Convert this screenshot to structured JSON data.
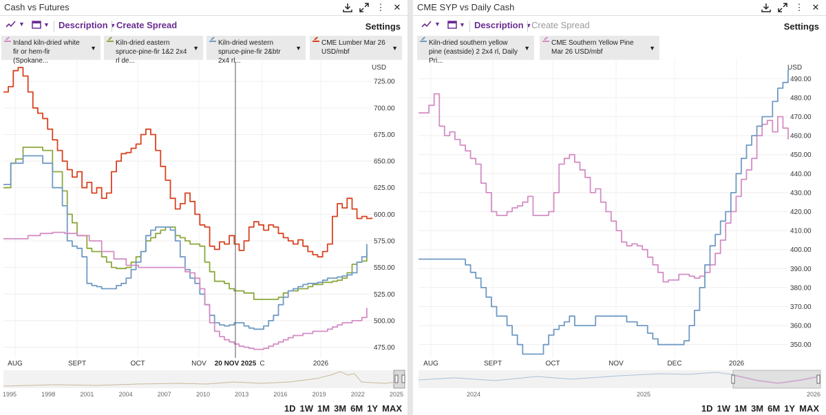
{
  "left": {
    "title": "Cash vs Futures",
    "toolbar": {
      "description": "Description",
      "create_spread": "Create Spread",
      "settings": "Settings"
    },
    "legend": [
      {
        "label": "Inland kiln-dried white fir or hem-fir (Spokane...",
        "color": "#d48cc4"
      },
      {
        "label": "Kiln-dried eastern spruce-pine-fir 1&2 2x4 rl de...",
        "color": "#8aa83c"
      },
      {
        "label": "Kiln-dried western spruce-pine-fir 2&btr 2x4 rl...",
        "color": "#6f9ac4"
      },
      {
        "label": "CME Lumber Mar 26 USD/mbf",
        "color": "#d9411e"
      }
    ],
    "crosshair_label": "20 NOV 2025",
    "nav_years": [
      "1995",
      "1998",
      "2001",
      "2004",
      "2007",
      "2010",
      "2013",
      "2016",
      "2019",
      "2022",
      "2025"
    ],
    "ranges": [
      "1D",
      "1W",
      "1M",
      "3M",
      "6M",
      "1Y",
      "MAX"
    ]
  },
  "right": {
    "title": "CME SYP vs Daily Cash",
    "toolbar": {
      "description": "Description",
      "create_spread": "Create Spread",
      "settings": "Settings"
    },
    "legend": [
      {
        "label": "Kiln-dried southern yellow pine (eastside) 2 2x4 rl, Daily Pri...",
        "color": "#6f9ac4"
      },
      {
        "label": "CME Southern Yellow Pine Mar 26 USD/mbf",
        "color": "#d48cc4"
      }
    ],
    "nav_years": [
      "2024",
      "2025",
      "2026"
    ],
    "ranges": [
      "1D",
      "1W",
      "1M",
      "3M",
      "6M",
      "1Y",
      "MAX"
    ]
  },
  "chart_data": [
    {
      "type": "line",
      "title": "Cash vs Futures",
      "ylabel": "USD",
      "ylim": [
        465,
        740
      ],
      "yticks": [
        "475.00",
        "500.00",
        "525.00",
        "550.00",
        "575.00",
        "600.00",
        "625.00",
        "650.00",
        "675.00",
        "700.00",
        "725.00"
      ],
      "xlabels": [
        "AUG",
        "SEPT",
        "OCT",
        "NOV",
        "C",
        "2026"
      ],
      "series": [
        {
          "name": "CME Lumber Mar 26 USD/mbf",
          "color": "#d9411e",
          "x": [
            0,
            2,
            4,
            6,
            8,
            10,
            12,
            14,
            16,
            18,
            20,
            22,
            24,
            26,
            28,
            30,
            32,
            34,
            36,
            38,
            40,
            42,
            44,
            46,
            48,
            50,
            52,
            54,
            56,
            58,
            60,
            62,
            64,
            66,
            68,
            70,
            72,
            74,
            76,
            78,
            80,
            82,
            84,
            86,
            88,
            90,
            92,
            94,
            96,
            98,
            100,
            102,
            104,
            106,
            108,
            110,
            112,
            114,
            116,
            118,
            120,
            122,
            124,
            126,
            128,
            130,
            132,
            134,
            136,
            138,
            140,
            142,
            144,
            146,
            148,
            150
          ],
          "values": [
            715,
            720,
            735,
            738,
            730,
            715,
            700,
            695,
            690,
            680,
            670,
            660,
            650,
            642,
            635,
            640,
            625,
            630,
            620,
            625,
            615,
            620,
            640,
            650,
            657,
            658,
            662,
            666,
            675,
            680,
            675,
            660,
            645,
            632,
            615,
            605,
            610,
            620,
            612,
            600,
            590,
            588,
            570,
            567,
            574,
            572,
            580,
            572,
            566,
            575,
            588,
            593,
            590,
            585,
            590,
            588,
            582,
            578,
            575,
            572,
            576,
            570,
            565,
            562,
            560,
            565,
            572,
            598,
            610,
            606,
            615,
            605,
            596,
            598,
            596,
            597
          ]
        },
        {
          "name": "Kiln-dried eastern spruce-pine-fir 1&2 2x4 rl",
          "color": "#8aa83c",
          "x": [
            0,
            3,
            5,
            8,
            12,
            16,
            20,
            24,
            26,
            28,
            30,
            32,
            34,
            36,
            38,
            40,
            42,
            44,
            46,
            48,
            50,
            52,
            54,
            56,
            58,
            60,
            62,
            64,
            66,
            68,
            70,
            72,
            74,
            76,
            78,
            80,
            82,
            84,
            86,
            88,
            90,
            92,
            94,
            96,
            98,
            100,
            102,
            104,
            106,
            108,
            110,
            112,
            114,
            116,
            118,
            120,
            122,
            124,
            126,
            128,
            130,
            132,
            134,
            136,
            138,
            140,
            142,
            144,
            146,
            148
          ],
          "values": [
            625,
            648,
            652,
            663,
            663,
            660,
            640,
            622,
            600,
            592,
            580,
            580,
            568,
            565,
            565,
            560,
            555,
            550,
            549,
            549,
            550,
            555,
            560,
            565,
            575,
            578,
            582,
            585,
            588,
            588,
            580,
            578,
            575,
            572,
            572,
            570,
            555,
            546,
            537,
            537,
            535,
            530,
            528,
            528,
            526,
            526,
            520,
            520,
            520,
            520,
            520,
            522,
            526,
            528,
            528,
            530,
            530,
            532,
            534,
            534,
            536,
            536,
            537,
            538,
            540,
            545,
            553,
            555,
            556,
            565
          ]
        },
        {
          "name": "Kiln-dried western spruce-pine-fir 2&btr 2x4 rl",
          "color": "#6f9ac4",
          "x": [
            0,
            3,
            5,
            8,
            12,
            16,
            20,
            24,
            26,
            28,
            30,
            32,
            34,
            36,
            38,
            40,
            42,
            44,
            46,
            48,
            50,
            52,
            54,
            56,
            58,
            60,
            62,
            64,
            66,
            68,
            70,
            72,
            74,
            76,
            78,
            80,
            82,
            84,
            86,
            88,
            90,
            92,
            94,
            96,
            98,
            100,
            102,
            104,
            106,
            108,
            110,
            112,
            114,
            116,
            118,
            120,
            122,
            124,
            126,
            128,
            130,
            132,
            134,
            136,
            138,
            140,
            142,
            144,
            146,
            148
          ],
          "values": [
            628,
            648,
            648,
            655,
            655,
            648,
            625,
            608,
            575,
            570,
            568,
            560,
            535,
            533,
            532,
            530,
            530,
            530,
            533,
            535,
            540,
            548,
            555,
            565,
            580,
            585,
            588,
            588,
            588,
            585,
            575,
            560,
            548,
            540,
            535,
            525,
            515,
            505,
            498,
            496,
            495,
            496,
            498,
            498,
            495,
            493,
            492,
            492,
            495,
            500,
            505,
            515,
            522,
            528,
            530,
            532,
            534,
            535,
            535,
            536,
            538,
            540,
            540,
            541,
            542,
            543,
            545,
            555,
            560,
            572
          ]
        },
        {
          "name": "Inland kiln-dried white fir or hem-fir (Spokane)",
          "color": "#d48cc4",
          "x": [
            0,
            5,
            10,
            15,
            20,
            25,
            30,
            35,
            40,
            45,
            50,
            55,
            60,
            65,
            70,
            74,
            76,
            78,
            80,
            82,
            84,
            86,
            88,
            90,
            92,
            94,
            96,
            98,
            100,
            102,
            104,
            106,
            108,
            110,
            112,
            114,
            116,
            118,
            120,
            122,
            124,
            126,
            128,
            130,
            132,
            134,
            136,
            138,
            140,
            142,
            144,
            146,
            148
          ],
          "values": [
            577,
            577,
            580,
            582,
            583,
            582,
            580,
            575,
            565,
            558,
            552,
            550,
            550,
            550,
            550,
            546,
            545,
            540,
            530,
            515,
            498,
            490,
            485,
            482,
            480,
            478,
            476,
            475,
            474,
            473,
            473,
            474,
            476,
            478,
            480,
            482,
            484,
            486,
            486,
            488,
            488,
            490,
            490,
            490,
            492,
            494,
            496,
            498,
            498,
            500,
            500,
            503,
            512
          ]
        }
      ]
    },
    {
      "type": "line",
      "title": "CME SYP vs Daily Cash",
      "ylabel": "USD",
      "ylim": [
        343,
        497
      ],
      "yticks": [
        "350.00",
        "360.00",
        "370.00",
        "380.00",
        "390.00",
        "400.00",
        "410.00",
        "420.00",
        "430.00",
        "440.00",
        "450.00",
        "460.00",
        "470.00",
        "480.00",
        "490.00"
      ],
      "xlabels": [
        "AUG",
        "SEPT",
        "OCT",
        "NOV",
        "DEC",
        "2026"
      ],
      "series": [
        {
          "name": "CME Southern Yellow Pine Mar 26 USD/mbf",
          "color": "#d48cc4",
          "x": [
            0,
            2,
            4,
            6,
            8,
            10,
            12,
            14,
            16,
            18,
            20,
            22,
            24,
            26,
            28,
            30,
            32,
            34,
            36,
            38,
            40,
            42,
            44,
            46,
            48,
            50,
            52,
            54,
            56,
            58,
            60,
            62,
            64,
            66,
            68,
            70,
            72,
            74,
            76,
            78,
            80,
            82,
            84,
            86,
            88,
            90,
            92,
            94,
            96,
            98,
            100,
            102,
            104,
            106,
            108,
            110,
            112,
            114,
            116,
            118,
            120,
            122,
            124,
            126,
            128,
            130,
            132,
            134,
            136,
            138,
            140,
            142
          ],
          "values": [
            472,
            472,
            476,
            482,
            465,
            460,
            462,
            458,
            455,
            452,
            448,
            445,
            435,
            430,
            420,
            418,
            418,
            420,
            422,
            423,
            425,
            428,
            418,
            418,
            418,
            420,
            430,
            445,
            448,
            450,
            446,
            442,
            438,
            430,
            432,
            425,
            420,
            415,
            410,
            404,
            402,
            403,
            402,
            400,
            396,
            392,
            388,
            383,
            384,
            384,
            387,
            387,
            386,
            385,
            386,
            388,
            392,
            398,
            405,
            414,
            420,
            428,
            437,
            442,
            448,
            460,
            466,
            468,
            462,
            470,
            464,
            458
          ]
        },
        {
          "name": "Kiln-dried southern yellow pine (eastside) 2 2x4 rl, Daily Price",
          "color": "#6f9ac4",
          "x": [
            0,
            4,
            8,
            12,
            16,
            18,
            20,
            22,
            24,
            26,
            28,
            30,
            32,
            34,
            36,
            38,
            40,
            42,
            44,
            46,
            48,
            50,
            52,
            54,
            56,
            58,
            60,
            64,
            68,
            72,
            76,
            80,
            84,
            88,
            90,
            92,
            94,
            96,
            98,
            100,
            102,
            104,
            106,
            108,
            110,
            112,
            114,
            116,
            118,
            120,
            122,
            124,
            126,
            128,
            130,
            132,
            134,
            136,
            138,
            140,
            142
          ],
          "values": [
            395,
            395,
            395,
            395,
            395,
            392,
            388,
            385,
            380,
            375,
            370,
            365,
            365,
            360,
            355,
            350,
            345,
            345,
            345,
            345,
            350,
            355,
            358,
            360,
            362,
            365,
            360,
            360,
            365,
            365,
            365,
            362,
            360,
            356,
            353,
            350,
            350,
            350,
            350,
            350,
            352,
            360,
            368,
            380,
            392,
            402,
            408,
            415,
            420,
            430,
            440,
            448,
            455,
            460,
            465,
            470,
            470,
            478,
            485,
            488,
            495
          ]
        }
      ]
    }
  ]
}
